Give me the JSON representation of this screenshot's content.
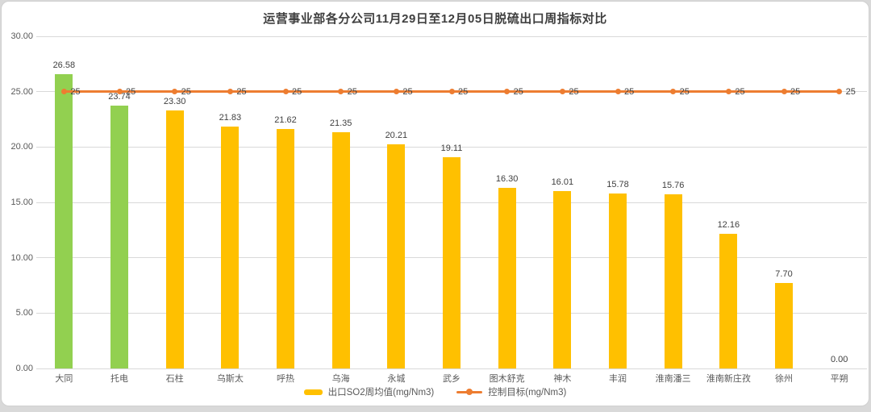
{
  "title": "运营事业部各分公司11月29日至12月05日脱硫出口周指标对比",
  "chart_data": {
    "type": "bar",
    "categories": [
      "大同",
      "托电",
      "石柱",
      "乌斯太",
      "呼热",
      "乌海",
      "永城",
      "武乡",
      "图木舒克",
      "神木",
      "丰润",
      "淮南潘三",
      "淮南新庄孜",
      "徐州",
      "平朔"
    ],
    "series": [
      {
        "name": "出口SO2周均值(mg/Nm3)",
        "type": "bar",
        "values": [
          26.58,
          23.74,
          23.3,
          21.83,
          21.62,
          21.35,
          20.21,
          19.11,
          16.3,
          16.01,
          15.78,
          15.76,
          12.16,
          7.7,
          0.0
        ],
        "value_labels": [
          "26.58",
          "23.74",
          "23.30",
          "21.83",
          "21.62",
          "21.35",
          "20.21",
          "19.11",
          "16.30",
          "16.01",
          "15.78",
          "15.76",
          "12.16",
          "7.70",
          "0.00"
        ],
        "bar_colors": [
          "#92D050",
          "#92D050",
          "#FFC000",
          "#FFC000",
          "#FFC000",
          "#FFC000",
          "#FFC000",
          "#FFC000",
          "#FFC000",
          "#FFC000",
          "#FFC000",
          "#FFC000",
          "#FFC000",
          "#FFC000",
          "#FFC000"
        ]
      },
      {
        "name": "控制目标(mg/Nm3)",
        "type": "line",
        "values": [
          25,
          25,
          25,
          25,
          25,
          25,
          25,
          25,
          25,
          25,
          25,
          25,
          25,
          25,
          25
        ],
        "value_labels": [
          "25",
          "25",
          "25",
          "25",
          "25",
          "25",
          "25",
          "25",
          "25",
          "25",
          "25",
          "25",
          "25",
          "25",
          "25"
        ],
        "color": "#ED7D31"
      }
    ],
    "ylim": [
      0,
      30
    ],
    "yticks": [
      "0.00",
      "5.00",
      "10.00",
      "15.00",
      "20.00",
      "25.00",
      "30.00"
    ],
    "grid": true,
    "legend_position": "bottom"
  },
  "legend": {
    "bar_label": "出口SO2周均值(mg/Nm3)",
    "line_label": "控制目标(mg/Nm3)"
  },
  "colors": {
    "bar_default": "#FFC000",
    "bar_highlight": "#92D050",
    "target_line": "#ED7D31",
    "gridline": "#d9d9d9",
    "axis_text": "#595959",
    "value_text": "#404040"
  }
}
